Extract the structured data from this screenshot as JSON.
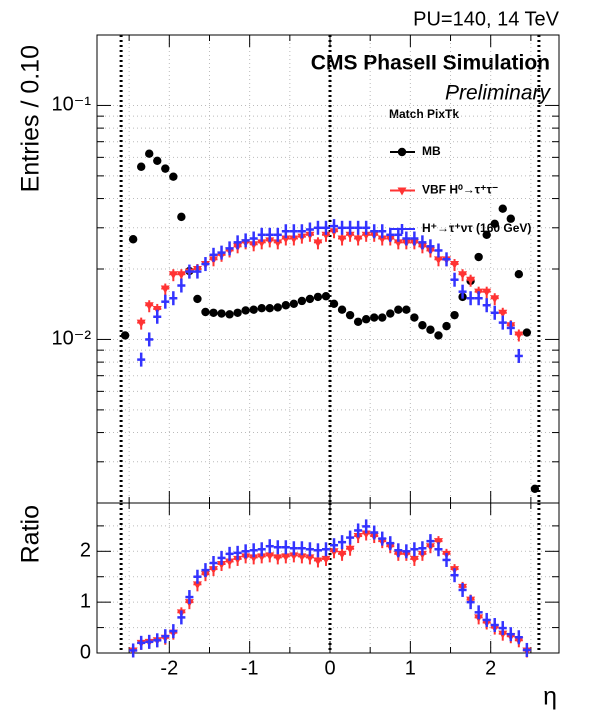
{
  "chart_data": [
    {
      "type": "scatter",
      "log_y": true,
      "grid": true,
      "title": "PU=140, 14 TeV",
      "subtitle": "CMS PhaseII Simulation",
      "annotation": "Preliminary",
      "legend_title": "Match PixTk",
      "y_label": "Entries / 0.10",
      "x": [
        -2.55,
        -2.45,
        -2.35,
        -2.25,
        -2.15,
        -2.05,
        -1.95,
        -1.85,
        -1.75,
        -1.65,
        -1.55,
        -1.45,
        -1.35,
        -1.25,
        -1.15,
        -1.05,
        -0.95,
        -0.85,
        -0.75,
        -0.65,
        -0.55,
        -0.45,
        -0.35,
        -0.25,
        -0.15,
        -0.05,
        0.05,
        0.15,
        0.25,
        0.35,
        0.45,
        0.55,
        0.65,
        0.75,
        0.85,
        0.95,
        1.05,
        1.15,
        1.25,
        1.35,
        1.45,
        1.55,
        1.65,
        1.75,
        1.85,
        1.95,
        2.05,
        2.15,
        2.25,
        2.35,
        2.45,
        2.55
      ],
      "xlim": [
        -2.9,
        2.85
      ],
      "xticks": [
        -2,
        -1,
        0,
        1,
        2
      ],
      "xticks_minor": [
        -2.5,
        -1.5,
        -0.5,
        0.5,
        1.5,
        2.5
      ],
      "vlines": [
        -2.6,
        0,
        2.6
      ],
      "ylim": [
        0.002,
        0.2
      ],
      "yticks": [
        {
          "value": 0.01,
          "label": "10⁻²"
        },
        {
          "value": 0.1,
          "label": "10⁻¹"
        }
      ],
      "yticks_minor": [
        0.002,
        0.003,
        0.004,
        0.005,
        0.006,
        0.007,
        0.008,
        0.009,
        0.02,
        0.03,
        0.04,
        0.05,
        0.06,
        0.07,
        0.08,
        0.09,
        0.2
      ],
      "series": [
        {
          "name": "MB",
          "color": "#000000",
          "marker": "circle",
          "values": [
            0.0104,
            0.0268,
            0.0547,
            0.0622,
            0.058,
            0.0537,
            0.0496,
            0.0334,
            0.0196,
            0.0149,
            0.0131,
            0.013,
            0.0129,
            0.0128,
            0.013,
            0.0133,
            0.0134,
            0.0136,
            0.0136,
            0.0137,
            0.014,
            0.0142,
            0.0146,
            0.0149,
            0.0152,
            0.0153,
            0.0142,
            0.0134,
            0.0127,
            0.0119,
            0.0122,
            0.0124,
            0.0124,
            0.0129,
            0.0134,
            0.0134,
            0.0124,
            0.0115,
            0.011,
            0.0104,
            0.0114,
            0.0127,
            0.0152,
            0.0178,
            0.0225,
            0.028,
            0.0312,
            0.0362,
            0.0328,
            0.019,
            0.0107,
            0.0023
          ]
        },
        {
          "name": "VBF H⁰→τ⁺τ⁻",
          "color": "#ff3333",
          "marker": "triangle",
          "values": [
            null,
            null,
            0.0118,
            0.014,
            0.0135,
            0.0165,
            0.019,
            0.019,
            0.0195,
            0.02,
            0.021,
            0.022,
            0.023,
            0.024,
            0.025,
            0.026,
            0.0255,
            0.026,
            0.0265,
            0.026,
            0.027,
            0.027,
            0.0275,
            0.028,
            0.026,
            0.028,
            0.029,
            0.027,
            0.028,
            0.027,
            0.028,
            0.028,
            0.027,
            0.027,
            0.026,
            0.026,
            0.026,
            0.025,
            0.024,
            0.022,
            0.022,
            0.021,
            0.019,
            0.018,
            0.016,
            0.016,
            0.015,
            0.013,
            0.0115,
            0.0105,
            null,
            null
          ]
        },
        {
          "name": "H⁺→τ⁺ντ (160 GeV)",
          "color": "#3333ff",
          "marker": "cross",
          "values": [
            null,
            null,
            0.0082,
            0.01,
            0.0125,
            0.0145,
            0.015,
            0.017,
            0.0195,
            0.0195,
            0.021,
            0.023,
            0.0235,
            0.0245,
            0.026,
            0.0265,
            0.027,
            0.028,
            0.028,
            0.028,
            0.029,
            0.029,
            0.029,
            0.0295,
            0.03,
            0.03,
            0.0305,
            0.03,
            0.03,
            0.03,
            0.03,
            0.029,
            0.029,
            0.028,
            0.028,
            0.027,
            0.027,
            0.026,
            0.025,
            0.024,
            0.022,
            0.018,
            0.016,
            0.015,
            0.015,
            0.014,
            0.013,
            0.0118,
            0.0112,
            0.0085,
            null,
            null
          ]
        }
      ]
    },
    {
      "type": "scatter",
      "grid": true,
      "y_label": "Ratio",
      "x_label": "η",
      "x": [
        -2.55,
        -2.45,
        -2.35,
        -2.25,
        -2.15,
        -2.05,
        -1.95,
        -1.85,
        -1.75,
        -1.65,
        -1.55,
        -1.45,
        -1.35,
        -1.25,
        -1.15,
        -1.05,
        -0.95,
        -0.85,
        -0.75,
        -0.65,
        -0.55,
        -0.45,
        -0.35,
        -0.25,
        -0.15,
        -0.05,
        0.05,
        0.15,
        0.25,
        0.35,
        0.45,
        0.55,
        0.65,
        0.75,
        0.85,
        0.95,
        1.05,
        1.15,
        1.25,
        1.35,
        1.45,
        1.55,
        1.65,
        1.75,
        1.85,
        1.95,
        2.05,
        2.15,
        2.25,
        2.35,
        2.45,
        2.55
      ],
      "xlim": [
        -2.9,
        2.85
      ],
      "xticks": [
        -2,
        -1,
        0,
        1,
        2
      ],
      "xticks_minor": [
        -2.5,
        -1.5,
        -0.5,
        0.5,
        1.5,
        2.5
      ],
      "vlines": [
        -2.6,
        0,
        2.6
      ],
      "ylim": [
        0,
        2.95
      ],
      "yticks": [
        0,
        1,
        2
      ],
      "yticks_minor": [
        0.5,
        1.5,
        2.5
      ],
      "series": [
        {
          "color": "#ff3333",
          "marker": "triangle",
          "values": [
            null,
            0.05,
            0.2,
            0.22,
            0.25,
            0.3,
            0.4,
            0.8,
            1.0,
            1.35,
            1.55,
            1.65,
            1.75,
            1.8,
            1.85,
            1.9,
            1.88,
            1.9,
            1.92,
            1.88,
            1.9,
            1.92,
            1.9,
            1.88,
            1.82,
            1.85,
            2.0,
            1.95,
            2.05,
            2.3,
            2.35,
            2.3,
            2.2,
            2.1,
            1.95,
            1.95,
            1.85,
            1.95,
            2.1,
            2.2,
            1.95,
            1.65,
            1.3,
            1.05,
            0.7,
            0.6,
            0.5,
            0.38,
            0.33,
            0.25,
            0.05,
            null
          ]
        },
        {
          "color": "#3333ff",
          "marker": "cross",
          "values": [
            null,
            0.05,
            0.2,
            0.22,
            0.25,
            0.33,
            0.43,
            0.7,
            1.1,
            1.5,
            1.63,
            1.77,
            1.87,
            1.95,
            1.97,
            2.0,
            2.02,
            2.04,
            2.1,
            2.08,
            2.08,
            2.06,
            2.06,
            2.04,
            2.02,
            2.04,
            2.12,
            2.18,
            2.27,
            2.41,
            2.49,
            2.37,
            2.25,
            2.16,
            2.02,
            2.0,
            2.04,
            2.06,
            2.2,
            2.04,
            1.83,
            1.53,
            1.24,
            1.0,
            0.8,
            0.65,
            0.55,
            0.49,
            0.37,
            0.31,
            0.06,
            null
          ]
        }
      ]
    }
  ]
}
